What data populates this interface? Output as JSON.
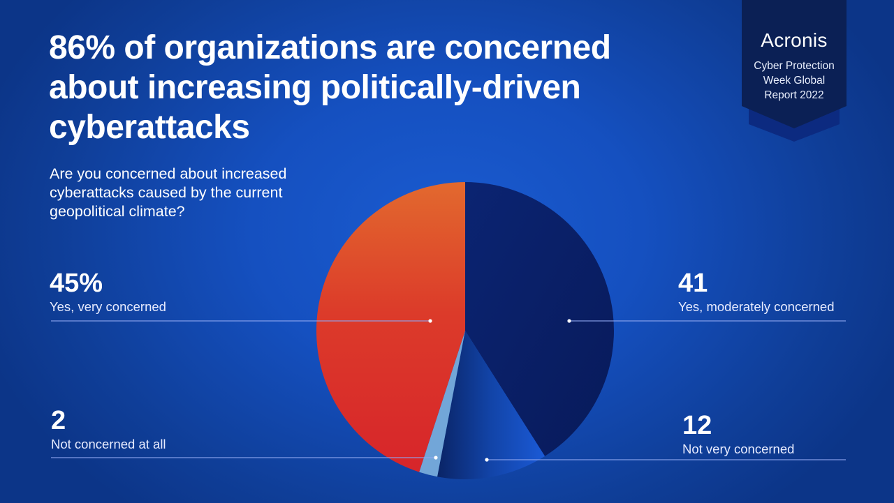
{
  "header": {
    "title": "86% of organizations are concerned about increasing politically-driven cyberattacks",
    "question": "Are you concerned about increased cyberattacks caused by the current geopolitical climate?"
  },
  "badge": {
    "brand": "Acronis",
    "line1": "Cyber Protection",
    "line2": "Week Global",
    "line3": "Report 2022",
    "color": "#0b2055"
  },
  "chart_data": {
    "type": "pie",
    "title": "86% of organizations are concerned about increasing politically-driven cyberattacks",
    "subtitle": "Are you concerned about increased cyberattacks caused by the current geopolitical climate?",
    "unit": "%",
    "start": "top",
    "direction": "clockwise",
    "slices": [
      {
        "label": "Yes, moderately concerned",
        "value": 41,
        "display": "41",
        "color": "#0b2266"
      },
      {
        "label": "Not very concerned",
        "value": 12,
        "display": "12",
        "color": "#1650c8"
      },
      {
        "label": "Not concerned at all",
        "value": 2,
        "display": "2",
        "color": "#72a6d8"
      },
      {
        "label": "Yes, very concerned",
        "value": 45,
        "display": "45%",
        "color": "#d9282a"
      }
    ]
  }
}
